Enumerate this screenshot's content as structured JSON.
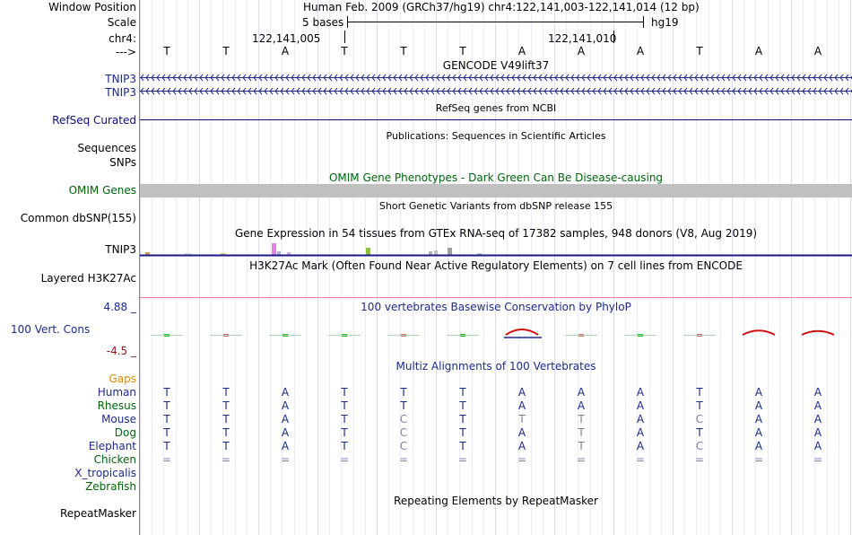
{
  "ruler": {
    "window_position_label": "Window Position",
    "scale_label": "Scale",
    "chrom_label": "chr4:",
    "strand_label": "--->",
    "position_text": "Human Feb. 2009 (GRCh37/hg19)   chr4:122,141,003-122,141,014 (12 bp)",
    "scale_text": "5 bases",
    "assembly": "hg19",
    "coord1": "122,141,005",
    "coord2": "122,141,010"
  },
  "bases": [
    "T",
    "T",
    "A",
    "T",
    "T",
    "T",
    "A",
    "A",
    "A",
    "T",
    "A",
    "A"
  ],
  "tracks": {
    "gencode": {
      "title": "GENCODE V49lift37",
      "rows": [
        "TNIP3",
        "TNIP3"
      ],
      "color": "#1c2a8a"
    },
    "refseq": {
      "title": "RefSeq genes from NCBI",
      "label": "RefSeq Curated",
      "color": "#0c0c78"
    },
    "publications": {
      "title": "Publications: Sequences in Scientific Articles",
      "label1": "Sequences",
      "label2": "SNPs"
    },
    "omim": {
      "title": "OMIM Gene Phenotypes - Dark Green Can Be Disease-causing",
      "label": "OMIM Genes",
      "color": "#00640a"
    },
    "dbsnp": {
      "title": "Short Genetic Variants from dbSNP release 155",
      "label": "Common dbSNP(155)"
    },
    "gtex": {
      "title": "Gene Expression in 54 tissues from GTEx RNA-seq of 17382 samples, 948 donors (V8, Aug 2019)",
      "label": "TNIP3"
    },
    "h3k27ac": {
      "title": "H3K27Ac Mark (Often Found Near Active Regulatory Elements) on 7 cell lines from ENCODE",
      "label": "Layered H3K27Ac"
    },
    "phylop": {
      "title": "100 vertebrates Basewise Conservation by PhyloP",
      "label": "100 Vert. Cons",
      "max": "4.88 _",
      "min": "-4.5 _",
      "color": "#1c2a8a",
      "scores": [
        0.1,
        0,
        0.3,
        0.2,
        0,
        0.25,
        1.0,
        -0.3,
        0.2,
        -0.2,
        0.8,
        0.7
      ]
    },
    "multiz": {
      "title": "Multiz Alignments of 100 Vertebrates",
      "gaps_label": "Gaps",
      "species": [
        {
          "name": "Human",
          "seq": [
            "T",
            "T",
            "A",
            "T",
            "T",
            "T",
            "A",
            "A",
            "A",
            "T",
            "A",
            "A"
          ]
        },
        {
          "name": "Rhesus",
          "seq": [
            "T",
            "T",
            "A",
            "T",
            "T",
            "T",
            "A",
            "A",
            "A",
            "T",
            "A",
            "A"
          ]
        },
        {
          "name": "Mouse",
          "seq": [
            "T",
            "T",
            "A",
            "T",
            "C",
            "T",
            "T",
            "T",
            "A",
            "C",
            "A",
            "A"
          ]
        },
        {
          "name": "Dog",
          "seq": [
            "T",
            "T",
            "A",
            "T",
            "C",
            "T",
            "A",
            "T",
            "A",
            "T",
            "A",
            "A"
          ]
        },
        {
          "name": "Elephant",
          "seq": [
            "T",
            "T",
            "A",
            "T",
            "C",
            "T",
            "A",
            "T",
            "A",
            "C",
            "A",
            "A"
          ]
        },
        {
          "name": "Chicken",
          "seq": [
            "=",
            "=",
            "=",
            "=",
            "=",
            "=",
            "=",
            "=",
            "=",
            "=",
            "=",
            "="
          ]
        },
        {
          "name": "X_tropicalis",
          "seq": []
        },
        {
          "name": "Zebrafish",
          "seq": []
        }
      ]
    },
    "repeatmasker": {
      "title": "Repeating Elements by RepeatMasker",
      "label": "RepeatMasker"
    }
  },
  "colors": {
    "navy": "#1c2a8a",
    "darkred": "#8b1a1a",
    "orange": "#e08a00",
    "green": "#00640a",
    "omim_bar": "#c0c0c0",
    "gtex_line": "#1a1a8a",
    "encode_line": "#f080a0"
  }
}
